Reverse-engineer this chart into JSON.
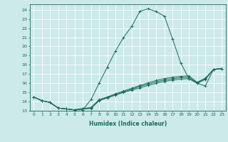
{
  "title": "",
  "xlabel": "Humidex (Indice chaleur)",
  "bg_color": "#cceae7",
  "grid_color": "#ffffff",
  "line_color": "#1a6b5a",
  "xlim": [
    -0.5,
    23.5
  ],
  "ylim": [
    13,
    24.6
  ],
  "yticks": [
    13,
    14,
    15,
    16,
    17,
    18,
    19,
    20,
    21,
    22,
    23,
    24
  ],
  "xticks": [
    0,
    1,
    2,
    3,
    4,
    5,
    6,
    7,
    8,
    9,
    10,
    11,
    12,
    13,
    14,
    15,
    16,
    17,
    18,
    19,
    20,
    21,
    22,
    23
  ],
  "xtick_labels": [
    "0",
    "1",
    "2",
    "3",
    "4",
    "5",
    "6",
    "7",
    "8",
    "9",
    "10",
    "11",
    "12",
    "13",
    "14",
    "15",
    "16",
    "17",
    "18",
    "19",
    "20",
    "21",
    "22",
    "23"
  ],
  "series": [
    [
      14.5,
      14.1,
      13.9,
      13.3,
      13.2,
      13.1,
      13.1,
      14.2,
      16.0,
      17.75,
      19.5,
      21.0,
      22.2,
      23.85,
      24.1,
      23.8,
      23.3,
      20.8,
      18.2,
      16.5,
      16.0,
      15.7,
      17.5,
      17.6
    ],
    [
      14.5,
      14.1,
      13.9,
      13.3,
      13.2,
      13.1,
      13.2,
      13.25,
      14.1,
      14.4,
      14.7,
      15.0,
      15.25,
      15.5,
      15.75,
      16.0,
      16.2,
      16.35,
      16.45,
      16.5,
      16.0,
      16.4,
      17.5,
      17.6
    ],
    [
      14.5,
      14.1,
      13.9,
      13.3,
      13.2,
      13.1,
      13.2,
      13.3,
      14.15,
      14.45,
      14.75,
      15.05,
      15.35,
      15.65,
      15.9,
      16.15,
      16.35,
      16.5,
      16.6,
      16.65,
      16.05,
      16.5,
      17.5,
      17.6
    ],
    [
      14.5,
      14.1,
      13.9,
      13.3,
      13.2,
      13.1,
      13.25,
      13.35,
      14.2,
      14.5,
      14.85,
      15.15,
      15.45,
      15.75,
      16.05,
      16.3,
      16.5,
      16.65,
      16.75,
      16.8,
      16.1,
      16.55,
      17.5,
      17.6
    ]
  ]
}
